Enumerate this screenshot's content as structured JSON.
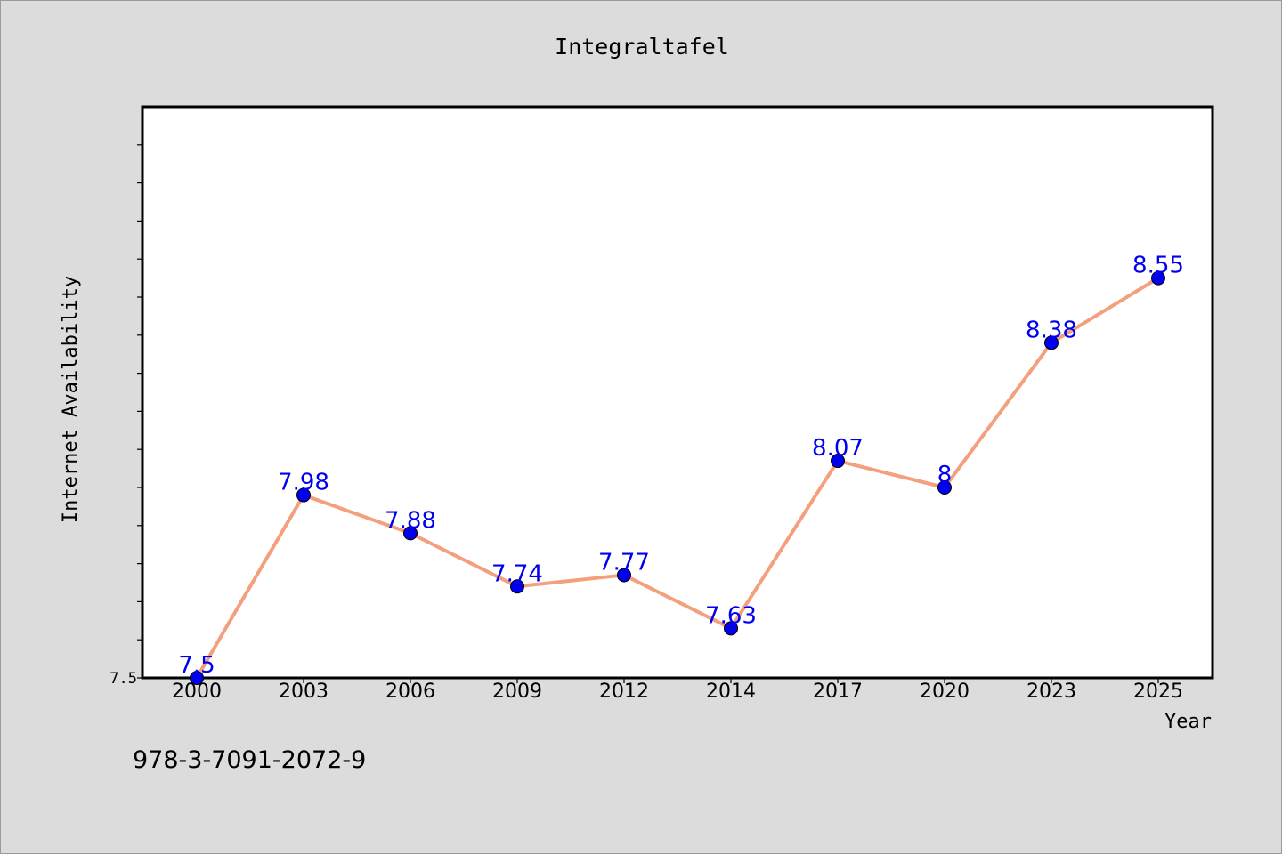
{
  "chart_data": {
    "type": "line",
    "title": "Integraltafel",
    "xlabel": "Year",
    "ylabel": "Internet Availability",
    "categories": [
      "2000",
      "2003",
      "2006",
      "2009",
      "2012",
      "2014",
      "2017",
      "2020",
      "2023",
      "2025"
    ],
    "series": [
      {
        "values": [
          7.5,
          7.98,
          7.88,
          7.74,
          7.77,
          7.63,
          8.07,
          8.0,
          8.38,
          8.55
        ],
        "data_labels": [
          "7.5",
          "7.98",
          "7.88",
          "7.74",
          "7.77",
          "7.63",
          "8.07",
          "8",
          "8.38",
          "8.55"
        ],
        "line_color": "#f4a07e",
        "marker_color": "#0000ee",
        "label_color": "#0000ee"
      }
    ],
    "ylim": [
      7.5,
      9.0
    ],
    "yticks_labeled": [
      "7.5"
    ],
    "grid": false,
    "legend": "none"
  },
  "annotation": {
    "isbn": "978-3-7091-2072-9"
  },
  "colors": {
    "background": "#dcdcdc",
    "plot_area": "#ffffff",
    "axis": "#000000"
  }
}
